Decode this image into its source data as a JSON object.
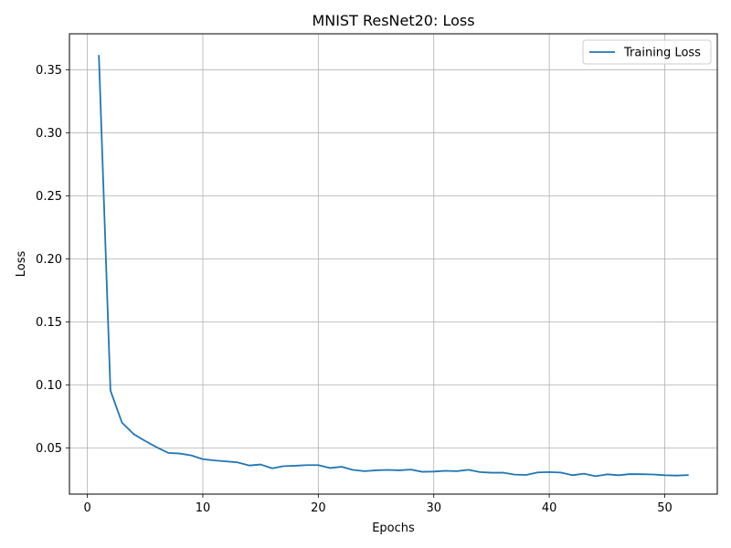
{
  "chart_data": {
    "type": "line",
    "title": "MNIST ResNet20: Loss",
    "xlabel": "Epochs",
    "ylabel": "Loss",
    "xlim": [
      -1.55,
      54.55
    ],
    "ylim": [
      0.0133,
      0.3785
    ],
    "x_ticks": [
      0,
      10,
      20,
      30,
      40,
      50
    ],
    "y_ticks": [
      0.05,
      0.1,
      0.15,
      0.2,
      0.25,
      0.3,
      0.35
    ],
    "x_tick_labels": [
      "0",
      "10",
      "20",
      "30",
      "40",
      "50"
    ],
    "y_tick_labels": [
      "0.05",
      "0.10",
      "0.15",
      "0.20",
      "0.25",
      "0.30",
      "0.35"
    ],
    "grid": true,
    "legend_position": "top-right",
    "series": [
      {
        "name": "Training Loss",
        "color": "#1f77b4",
        "x": [
          1,
          2,
          3,
          4,
          5,
          6,
          7,
          8,
          9,
          10,
          11,
          12,
          13,
          14,
          15,
          16,
          17,
          18,
          19,
          20,
          21,
          22,
          23,
          24,
          25,
          26,
          27,
          28,
          29,
          30,
          31,
          32,
          33,
          34,
          35,
          36,
          37,
          38,
          39,
          40,
          41,
          42,
          43,
          44,
          45,
          46,
          47,
          48,
          49,
          50,
          51,
          52
        ],
        "values": [
          0.361,
          0.0955,
          0.07,
          0.061,
          0.0555,
          0.0505,
          0.046,
          0.0455,
          0.044,
          0.041,
          0.04,
          0.0393,
          0.0385,
          0.036,
          0.0368,
          0.0338,
          0.0355,
          0.0358,
          0.0363,
          0.0363,
          0.034,
          0.035,
          0.0325,
          0.0315,
          0.0322,
          0.0325,
          0.0322,
          0.0328,
          0.031,
          0.0312,
          0.0318,
          0.0315,
          0.0326,
          0.0308,
          0.0303,
          0.0303,
          0.0288,
          0.0285,
          0.0305,
          0.0308,
          0.0304,
          0.0283,
          0.0295,
          0.0275,
          0.029,
          0.0283,
          0.0292,
          0.0291,
          0.0289,
          0.0283,
          0.028,
          0.0284
        ]
      }
    ]
  }
}
